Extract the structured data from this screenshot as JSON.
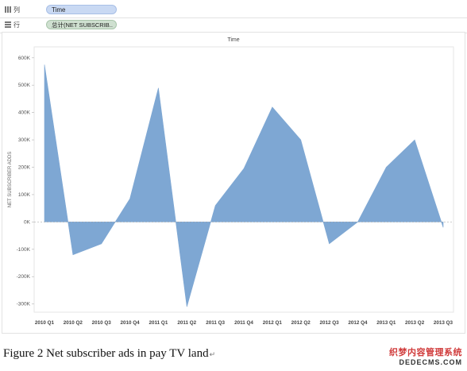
{
  "shelves": {
    "columns": {
      "label": "列",
      "pill": "Time"
    },
    "rows": {
      "label": "行",
      "pill": "总计(NET SUBSCRIB.."
    }
  },
  "chart_data": {
    "type": "area",
    "title": "Time",
    "xlabel": "",
    "ylabel": "NET SUBSCRIBER ADDS",
    "categories": [
      "2010 Q1",
      "2010 Q2",
      "2010 Q3",
      "2010 Q4",
      "2011 Q1",
      "2011 Q2",
      "2011 Q3",
      "2011 Q4",
      "2012 Q1",
      "2012 Q2",
      "2012 Q3",
      "2012 Q4",
      "2013 Q1",
      "2013 Q2",
      "2013 Q3"
    ],
    "values": [
      575000,
      -120000,
      -80000,
      85000,
      490000,
      -310000,
      60000,
      195000,
      420000,
      300000,
      -80000,
      0,
      200000,
      300000,
      -20000
    ],
    "ylim": [
      -330000,
      640000
    ],
    "yticks": [
      600000,
      500000,
      400000,
      300000,
      200000,
      100000,
      0,
      -100000,
      -200000,
      -300000
    ],
    "ytick_labels": [
      "600K",
      "500K",
      "400K",
      "300K",
      "200K",
      "100K",
      "0K",
      "-100K",
      "-200K",
      "-300K"
    ],
    "grid": false,
    "area_color": "#7ea7d3"
  },
  "caption": {
    "text": "Figure 2 Net subscriber ads in pay TV land",
    "mark": "↵"
  },
  "watermark": {
    "line1": "织梦内容管理系统",
    "line2": "DEDECMS.COM"
  }
}
